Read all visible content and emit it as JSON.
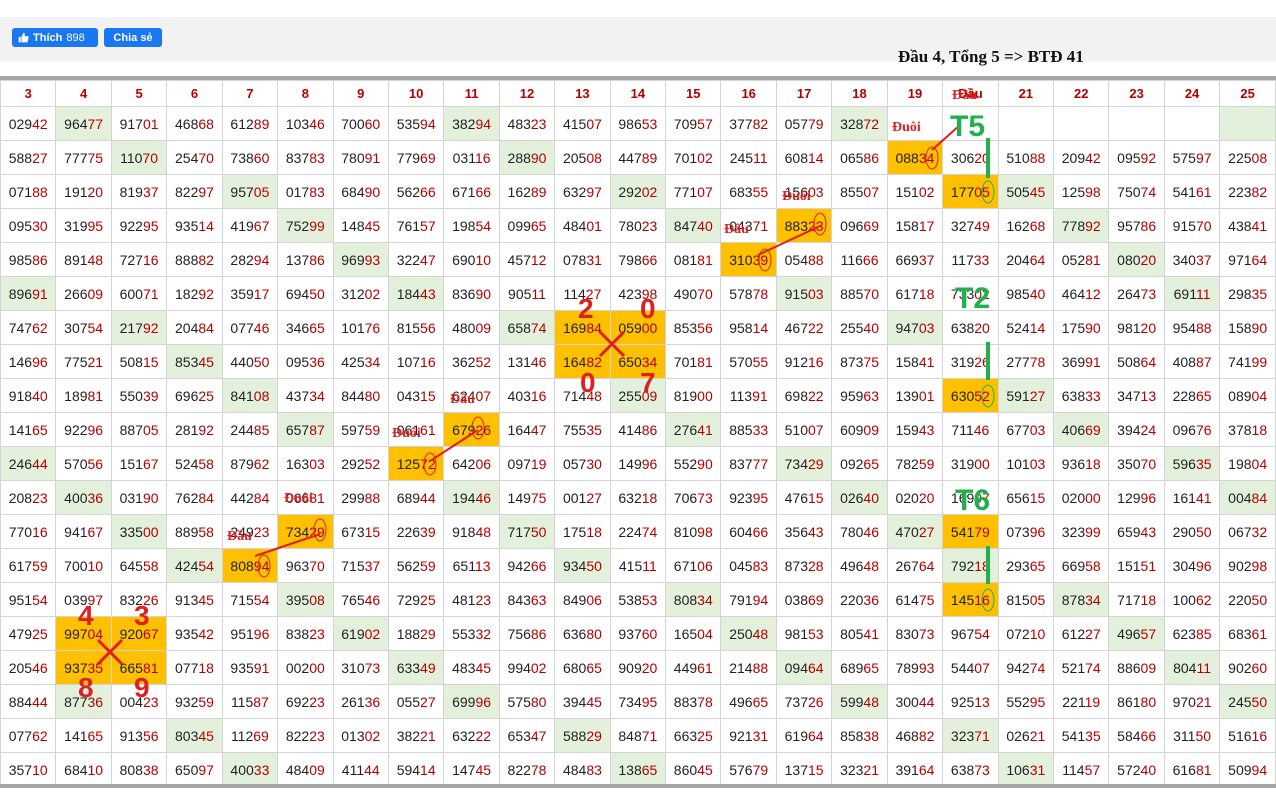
{
  "social": {
    "like_label": "Thích",
    "like_count": "898",
    "share_label": "Chia sẻ"
  },
  "headline": "Đầu 4, Tổng 5 => BTĐ 41",
  "table": {
    "columns": [
      "3",
      "4",
      "5",
      "6",
      "7",
      "8",
      "9",
      "10",
      "11",
      "12",
      "13",
      "14",
      "15",
      "16",
      "17",
      "18",
      "19",
      "Đầu",
      "21",
      "22",
      "23",
      "24",
      "25"
    ],
    "rows": [
      [
        "02942",
        "96477",
        "91701",
        "46868",
        "61289",
        "10346",
        "70060",
        "53594",
        "38294",
        "48323",
        "41507",
        "98653",
        "70957",
        "37782",
        "05779",
        "32872",
        "",
        "",
        "",
        "",
        "",
        "",
        ""
      ],
      [
        "58827",
        "77775",
        "11070",
        "25470",
        "73860",
        "83783",
        "78091",
        "77969",
        "03116",
        "28890",
        "20508",
        "44789",
        "70102",
        "24511",
        "60814",
        "06586",
        "08834",
        "30620",
        "51088",
        "20942",
        "09592",
        "57597",
        "22508"
      ],
      [
        "07188",
        "19120",
        "81937",
        "82297",
        "95705",
        "01783",
        "68490",
        "56266",
        "67166",
        "16289",
        "63297",
        "29202",
        "77107",
        "68355",
        "15603",
        "85507",
        "15102",
        "17705",
        "50545",
        "12598",
        "75074",
        "54161",
        "22382"
      ],
      [
        "09530",
        "31995",
        "92295",
        "93514",
        "41967",
        "75299",
        "14845",
        "76157",
        "19854",
        "09965",
        "48401",
        "78023",
        "84740",
        "04371",
        "88323",
        "09669",
        "15817",
        "32749",
        "16268",
        "77892",
        "95786",
        "91570",
        "43841"
      ],
      [
        "98586",
        "89148",
        "72716",
        "88882",
        "28294",
        "13786",
        "96993",
        "32247",
        "69010",
        "45712",
        "07831",
        "79866",
        "08181",
        "31039",
        "05488",
        "11666",
        "66937",
        "11733",
        "20464",
        "05281",
        "08020",
        "34037",
        "97164"
      ],
      [
        "89691",
        "26609",
        "60071",
        "18292",
        "35917",
        "69450",
        "31202",
        "18443",
        "83690",
        "90511",
        "11427",
        "42398",
        "49070",
        "57878",
        "91503",
        "88570",
        "61718",
        "73302",
        "98540",
        "46412",
        "26473",
        "69111",
        "29835"
      ],
      [
        "74762",
        "30754",
        "21792",
        "20484",
        "07746",
        "34665",
        "10176",
        "81556",
        "48009",
        "65874",
        "16984",
        "05900",
        "85356",
        "95814",
        "46722",
        "25540",
        "94703",
        "63820",
        "52414",
        "17590",
        "98120",
        "95488",
        "15890"
      ],
      [
        "14696",
        "77521",
        "50815",
        "85345",
        "44050",
        "09536",
        "42534",
        "10716",
        "36252",
        "13146",
        "16482",
        "65034",
        "70181",
        "57055",
        "91216",
        "87375",
        "15841",
        "31926",
        "27778",
        "36991",
        "50864",
        "40887",
        "74199"
      ],
      [
        "91840",
        "18981",
        "55039",
        "69625",
        "84108",
        "43734",
        "84480",
        "04315",
        "62407",
        "40316",
        "71448",
        "25509",
        "81900",
        "11391",
        "69822",
        "95963",
        "13901",
        "63052",
        "59127",
        "63833",
        "34713",
        "22865",
        "08904"
      ],
      [
        "14165",
        "92296",
        "88705",
        "28192",
        "24485",
        "65787",
        "59759",
        "06161",
        "67926",
        "16447",
        "75535",
        "41486",
        "27641",
        "88533",
        "51007",
        "60909",
        "15943",
        "71146",
        "67703",
        "40669",
        "39424",
        "09676",
        "37818"
      ],
      [
        "24644",
        "57056",
        "15167",
        "52458",
        "87962",
        "16303",
        "29252",
        "12572",
        "64206",
        "09719",
        "05730",
        "14996",
        "55290",
        "83777",
        "73429",
        "09265",
        "78259",
        "31900",
        "10103",
        "93618",
        "35070",
        "59635",
        "19804"
      ],
      [
        "20823",
        "40036",
        "03190",
        "76284",
        "44284",
        "06681",
        "29988",
        "68944",
        "19446",
        "14975",
        "00127",
        "63218",
        "70673",
        "92395",
        "47615",
        "02640",
        "02020",
        "16997",
        "65615",
        "02000",
        "12996",
        "16141",
        "00484"
      ],
      [
        "77016",
        "94167",
        "33500",
        "88958",
        "24923",
        "73429",
        "67315",
        "22639",
        "91848",
        "71750",
        "17518",
        "22474",
        "81098",
        "60466",
        "35643",
        "78046",
        "47027",
        "54179",
        "07396",
        "32399",
        "65943",
        "29050",
        "06732"
      ],
      [
        "61759",
        "70010",
        "64558",
        "42454",
        "80894",
        "96370",
        "71537",
        "56259",
        "65113",
        "94266",
        "93450",
        "41511",
        "67106",
        "04583",
        "87328",
        "49648",
        "26764",
        "79218",
        "29365",
        "66958",
        "15151",
        "30496",
        "90298"
      ],
      [
        "95154",
        "03997",
        "83226",
        "91345",
        "71554",
        "39508",
        "76546",
        "72925",
        "48123",
        "84363",
        "84906",
        "53853",
        "80834",
        "79194",
        "03869",
        "22036",
        "61475",
        "14516",
        "81505",
        "87834",
        "71718",
        "10062",
        "22050"
      ],
      [
        "47925",
        "99704",
        "92067",
        "93542",
        "95196",
        "83823",
        "61902",
        "18829",
        "55332",
        "75686",
        "63680",
        "93760",
        "16504",
        "25048",
        "98153",
        "80541",
        "83073",
        "96754",
        "07210",
        "61227",
        "49657",
        "62385",
        "68361"
      ],
      [
        "20546",
        "93735",
        "66581",
        "07718",
        "93591",
        "00200",
        "31073",
        "63349",
        "48345",
        "99402",
        "68065",
        "90920",
        "44961",
        "21488",
        "09464",
        "68965",
        "78993",
        "54407",
        "94274",
        "52174",
        "88609",
        "80411",
        "90260"
      ],
      [
        "88444",
        "87736",
        "00423",
        "93259",
        "11587",
        "69223",
        "26136",
        "05527",
        "69996",
        "57580",
        "39445",
        "73495",
        "88378",
        "49665",
        "73726",
        "59948",
        "30044",
        "92513",
        "55295",
        "22119",
        "86180",
        "97021",
        "24550"
      ],
      [
        "07762",
        "14165",
        "91356",
        "80345",
        "11269",
        "82223",
        "01302",
        "38221",
        "63222",
        "65347",
        "58829",
        "84871",
        "66325",
        "92131",
        "61964",
        "85838",
        "46882",
        "32371",
        "02621",
        "54135",
        "58466",
        "31150",
        "51616"
      ],
      [
        "35710",
        "68410",
        "80838",
        "65097",
        "40033",
        "48409",
        "41144",
        "59414",
        "14745",
        "82278",
        "48483",
        "13865",
        "86045",
        "57679",
        "13715",
        "32321",
        "39164",
        "63873",
        "10631",
        "11457",
        "57240",
        "61681",
        "50994"
      ]
    ],
    "green_cells": [
      [
        0,
        1
      ],
      [
        0,
        8
      ],
      [
        0,
        15
      ],
      [
        0,
        22
      ],
      [
        1,
        2
      ],
      [
        1,
        9
      ],
      [
        2,
        4
      ],
      [
        2,
        11
      ],
      [
        2,
        18
      ],
      [
        3,
        5
      ],
      [
        3,
        12
      ],
      [
        3,
        19
      ],
      [
        4,
        6
      ],
      [
        4,
        20
      ],
      [
        5,
        0
      ],
      [
        5,
        7
      ],
      [
        5,
        14
      ],
      [
        5,
        21
      ],
      [
        6,
        2
      ],
      [
        6,
        9
      ],
      [
        6,
        16
      ],
      [
        7,
        3
      ],
      [
        8,
        4
      ],
      [
        8,
        11
      ],
      [
        8,
        18
      ],
      [
        9,
        5
      ],
      [
        9,
        12
      ],
      [
        9,
        19
      ],
      [
        10,
        0
      ],
      [
        10,
        14
      ],
      [
        10,
        21
      ],
      [
        11,
        1
      ],
      [
        11,
        8
      ],
      [
        11,
        15
      ],
      [
        11,
        22
      ],
      [
        12,
        2
      ],
      [
        12,
        9
      ],
      [
        12,
        16
      ],
      [
        13,
        3
      ],
      [
        13,
        10
      ],
      [
        13,
        17
      ],
      [
        14,
        5
      ],
      [
        14,
        12
      ],
      [
        14,
        19
      ],
      [
        15,
        6
      ],
      [
        15,
        13
      ],
      [
        15,
        20
      ],
      [
        16,
        7
      ],
      [
        16,
        14
      ],
      [
        16,
        21
      ],
      [
        17,
        1
      ],
      [
        17,
        8
      ],
      [
        17,
        15
      ],
      [
        17,
        22
      ],
      [
        18,
        3
      ],
      [
        18,
        10
      ],
      [
        18,
        17
      ],
      [
        19,
        4
      ],
      [
        19,
        11
      ],
      [
        19,
        18
      ]
    ],
    "orange_cells": [
      [
        1,
        16
      ],
      [
        2,
        17
      ],
      [
        3,
        14
      ],
      [
        4,
        13
      ],
      [
        6,
        10
      ],
      [
        6,
        11
      ],
      [
        7,
        10
      ],
      [
        7,
        11
      ],
      [
        8,
        17
      ],
      [
        9,
        8
      ],
      [
        10,
        7
      ],
      [
        12,
        5
      ],
      [
        12,
        17
      ],
      [
        13,
        4
      ],
      [
        14,
        17
      ],
      [
        15,
        1
      ],
      [
        15,
        2
      ],
      [
        16,
        1
      ],
      [
        16,
        2
      ]
    ]
  },
  "annotations": {
    "dau": "Đầu",
    "duoi": "Đuôi",
    "t5": "T5",
    "t2": "T2",
    "t6": "T6",
    "d2": "2",
    "d0": "0",
    "d7": "7",
    "d4": "4",
    "d3": "3",
    "d8": "8",
    "d9": "9",
    "red": "#e02020",
    "green": "#21b04b",
    "highlight_orange": "#ffc000",
    "highlight_green": "#e3f1dc"
  }
}
